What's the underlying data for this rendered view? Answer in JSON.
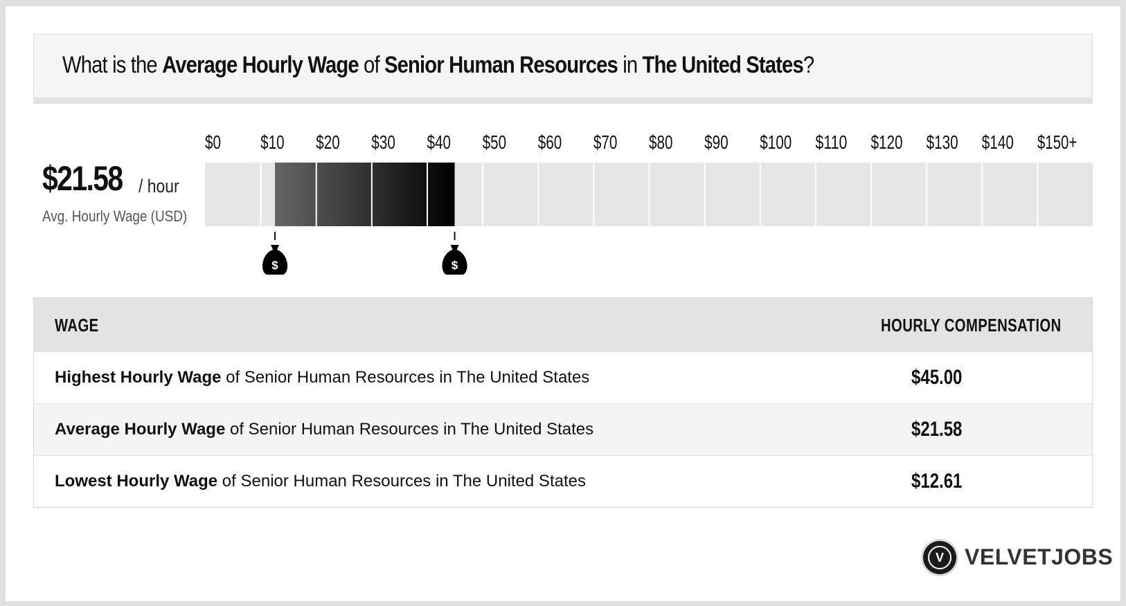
{
  "title": {
    "prefix": "What is the ",
    "metric": "Average Hourly Wage",
    "of": " of ",
    "job": "Senior Human Resources",
    "in": " in ",
    "location": "The United States",
    "suffix": "?"
  },
  "summary": {
    "value": "$21.58",
    "unit": "/ hour",
    "caption": "Avg. Hourly Wage (USD)"
  },
  "chart_data": {
    "type": "bar",
    "orientation": "horizontal-range",
    "tick_labels": [
      "$0",
      "$10",
      "$20",
      "$30",
      "$40",
      "$50",
      "$60",
      "$70",
      "$80",
      "$90",
      "$100",
      "$110",
      "$120",
      "$130",
      "$140",
      "$150+"
    ],
    "xlim": [
      0,
      160
    ],
    "range": {
      "low": 12.61,
      "high": 45.0
    },
    "average": 21.58,
    "markers": [
      12.61,
      45.0
    ],
    "marker_symbol": "$",
    "colors": {
      "track": "#e6e6e6",
      "fill_start": "#666666",
      "fill_end": "#000000"
    }
  },
  "table": {
    "headers": {
      "wage": "WAGE",
      "comp": "HOURLY COMPENSATION"
    },
    "rows": [
      {
        "bold": "Highest Hourly Wage",
        "rest": " of Senior Human Resources in The United States",
        "amount": "$45.00"
      },
      {
        "bold": "Average Hourly Wage",
        "rest": " of Senior Human Resources in The United States",
        "amount": "$21.58"
      },
      {
        "bold": "Lowest Hourly Wage",
        "rest": " of Senior Human Resources in The United States",
        "amount": "$12.61"
      }
    ]
  },
  "brand": {
    "logo_letter": "V",
    "name": "VELVETJOBS",
    "icon": "velvetjobs-logo-icon"
  }
}
